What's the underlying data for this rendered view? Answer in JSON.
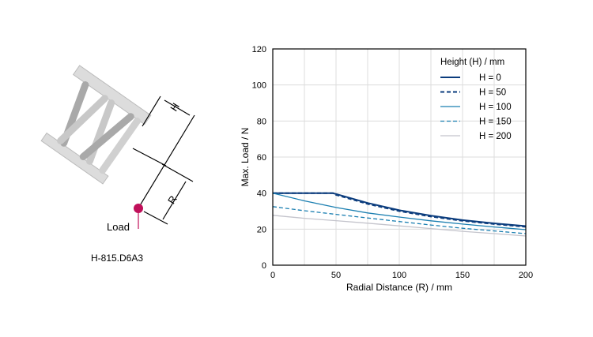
{
  "diagram": {
    "label_h": "H",
    "label_r": "R",
    "label_load": "Load",
    "model": "H-815.D6A3",
    "load_color": "#c0105a"
  },
  "chart_data": {
    "type": "line",
    "xlabel": "Radial Distance (R) / mm",
    "ylabel": "Max. Load / N",
    "xlim": [
      0,
      200
    ],
    "ylim": [
      0,
      120
    ],
    "xticks": [
      0,
      50,
      100,
      150,
      200
    ],
    "yticks": [
      0,
      20,
      40,
      60,
      80,
      100,
      120
    ],
    "grid": true,
    "legend_title": "Height (H) / mm",
    "legend_position": "top-right",
    "series": [
      {
        "name": "H = 0",
        "color": "#0b3c7d",
        "dash": "solid",
        "x": [
          0,
          25,
          47,
          50,
          75,
          100,
          125,
          150,
          175,
          200
        ],
        "y": [
          40,
          40,
          40,
          39.5,
          34.5,
          30.5,
          27.5,
          25,
          23.2,
          21.7
        ]
      },
      {
        "name": "H = 50",
        "color": "#0b3c7d",
        "dash": "dashed",
        "x": [
          0,
          25,
          48,
          50,
          75,
          100,
          125,
          150,
          175,
          200
        ],
        "y": [
          40,
          40,
          40,
          39,
          34,
          30,
          27,
          24.6,
          22.8,
          21.3
        ]
      },
      {
        "name": "H = 100",
        "color": "#1b7fb1",
        "dash": "solid",
        "x": [
          0,
          25,
          50,
          75,
          100,
          125,
          150,
          175,
          200
        ],
        "y": [
          40,
          35.7,
          32,
          29,
          26.7,
          24.6,
          22.8,
          21.2,
          19.7
        ]
      },
      {
        "name": "H = 150",
        "color": "#1b7fb1",
        "dash": "dashed",
        "x": [
          0,
          25,
          50,
          75,
          100,
          125,
          150,
          175,
          200
        ],
        "y": [
          32.5,
          30.2,
          28.2,
          26.2,
          24.2,
          22.3,
          20.5,
          19,
          17.5
        ]
      },
      {
        "name": "H = 200",
        "color": "#c4c4cc",
        "dash": "solid",
        "x": [
          0,
          25,
          50,
          75,
          100,
          125,
          150,
          175,
          200
        ],
        "y": [
          27.7,
          26,
          24.7,
          23.3,
          21.8,
          20.3,
          18.8,
          17.5,
          16.2
        ]
      }
    ]
  }
}
